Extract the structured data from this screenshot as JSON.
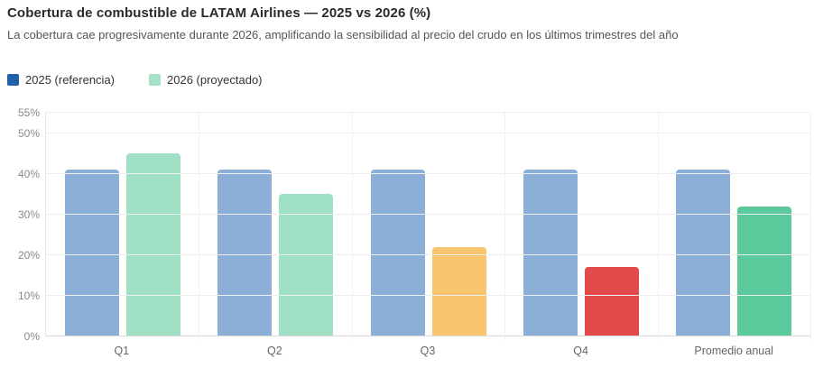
{
  "header": {
    "title": "Cobertura de combustible de LATAM Airlines — 2025 vs 2026 (%)",
    "subtitle": "La cobertura cae progresivamente durante 2026, amplificando la sensibilidad al precio del crudo en los últimos trimestres del año"
  },
  "legend": {
    "items": [
      {
        "label": "2025 (referencia)",
        "color": "#1f62ab"
      },
      {
        "label": "2026 (proyectado)",
        "color": "#a5e1c6"
      }
    ]
  },
  "chart_data": {
    "type": "bar",
    "title": "Cobertura de combustible de LATAM Airlines — 2025 vs 2026 (%)",
    "subtitle": "La cobertura cae progresivamente durante 2026, amplificando la sensibilidad al precio del crudo en los últimos trimestres del año",
    "categories": [
      "Q1",
      "Q2",
      "Q3",
      "Q4",
      "Promedio anual"
    ],
    "series": [
      {
        "name": "2025 (referencia)",
        "values": [
          41,
          41,
          41,
          41,
          41
        ],
        "colors": [
          "#8bafd6",
          "#8bafd6",
          "#8bafd6",
          "#8bafd6",
          "#8bafd6"
        ]
      },
      {
        "name": "2026 (proyectado)",
        "values": [
          45,
          35,
          22,
          17,
          32
        ],
        "colors": [
          "#9fe0c4",
          "#9fe0c4",
          "#f8c46e",
          "#e24b4b",
          "#5bc99b"
        ]
      }
    ],
    "ylabel": "",
    "xlabel": "",
    "ylim": [
      0,
      55
    ],
    "yticks": [
      0,
      10,
      20,
      30,
      40,
      50,
      55
    ],
    "ytick_labels": [
      "0%",
      "10%",
      "20%",
      "30%",
      "40%",
      "50%",
      "55%"
    ],
    "grid": true,
    "legend_position": "top-left"
  }
}
